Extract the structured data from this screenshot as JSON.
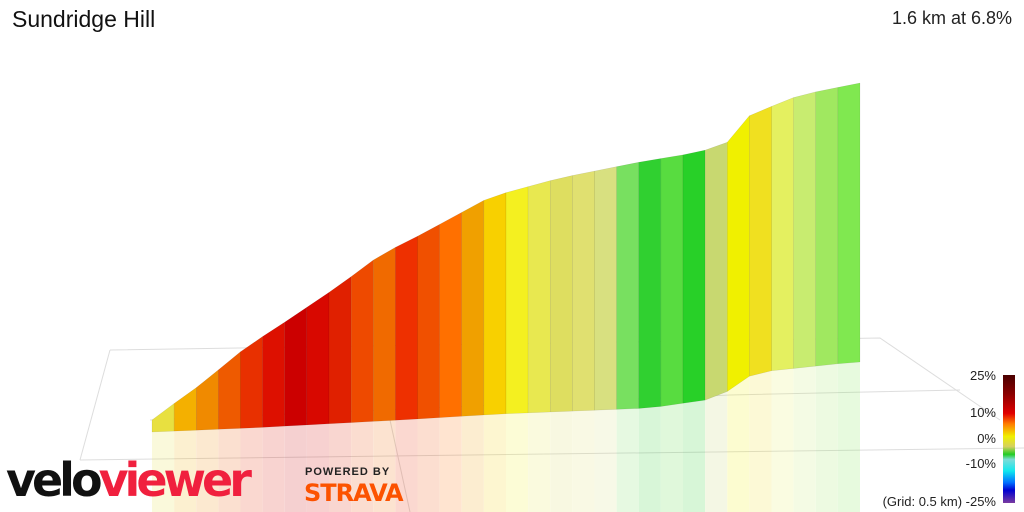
{
  "header": {
    "title": "Sundridge Hill",
    "summary": "1.6 km at 6.8%"
  },
  "legend": {
    "labels": [
      "25%",
      "10%",
      "0%",
      "-10%",
      "(Grid: 0.5 km) -25%"
    ]
  },
  "branding": {
    "logo_part1": "velo",
    "logo_part2": "viewer",
    "powered_by": "POWERED BY",
    "strava": "STRAVA"
  },
  "colors": {
    "logo_red": "#f0203e",
    "strava_orange": "#fc5200"
  },
  "segment_colors": [
    "#e8e040",
    "#f4b000",
    "#f08a00",
    "#ee5a00",
    "#e83000",
    "#dd1000",
    "#cc0000",
    "#d80800",
    "#e02000",
    "#ee4a00",
    "#f06a00",
    "#ee3000",
    "#f05000",
    "#ff7000",
    "#f0a000",
    "#f8d000",
    "#f4f020",
    "#e8e850",
    "#dede60",
    "#e0e070",
    "#d8e080",
    "#78e060",
    "#30d030",
    "#58dc40",
    "#28d028",
    "#c8d870",
    "#f0f000",
    "#f0e020",
    "#e4f060",
    "#c8ec70",
    "#a0e860",
    "#80e850"
  ]
}
